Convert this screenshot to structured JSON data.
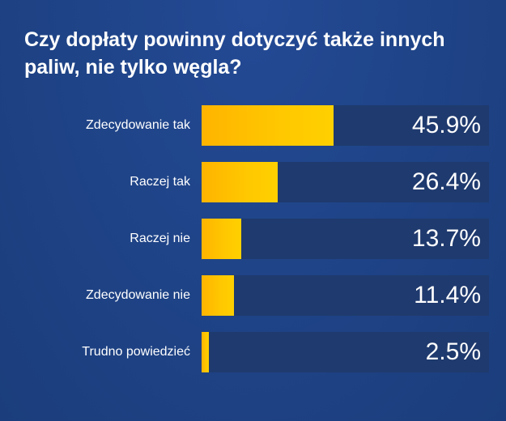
{
  "chart_data": {
    "type": "bar",
    "orientation": "horizontal",
    "title": "Czy dopłaty powinny dotyczyć także innych paliw, nie tylko węgla?",
    "categories": [
      "Zdecydowanie tak",
      "Raczej tak",
      "Raczej nie",
      "Zdecydowanie nie",
      "Trudno powiedzieć"
    ],
    "values": [
      45.9,
      26.4,
      13.7,
      11.4,
      2.5
    ],
    "value_labels": [
      "45.9%",
      "26.4%",
      "13.7%",
      "11.4%",
      "2.5%"
    ],
    "xlim": [
      0,
      100
    ],
    "grid": false,
    "colors": {
      "background": "#1f4488",
      "track": "#1f3a6e",
      "bar_start": "#ffb400",
      "bar_end": "#ffd000",
      "text": "#ffffff"
    }
  }
}
